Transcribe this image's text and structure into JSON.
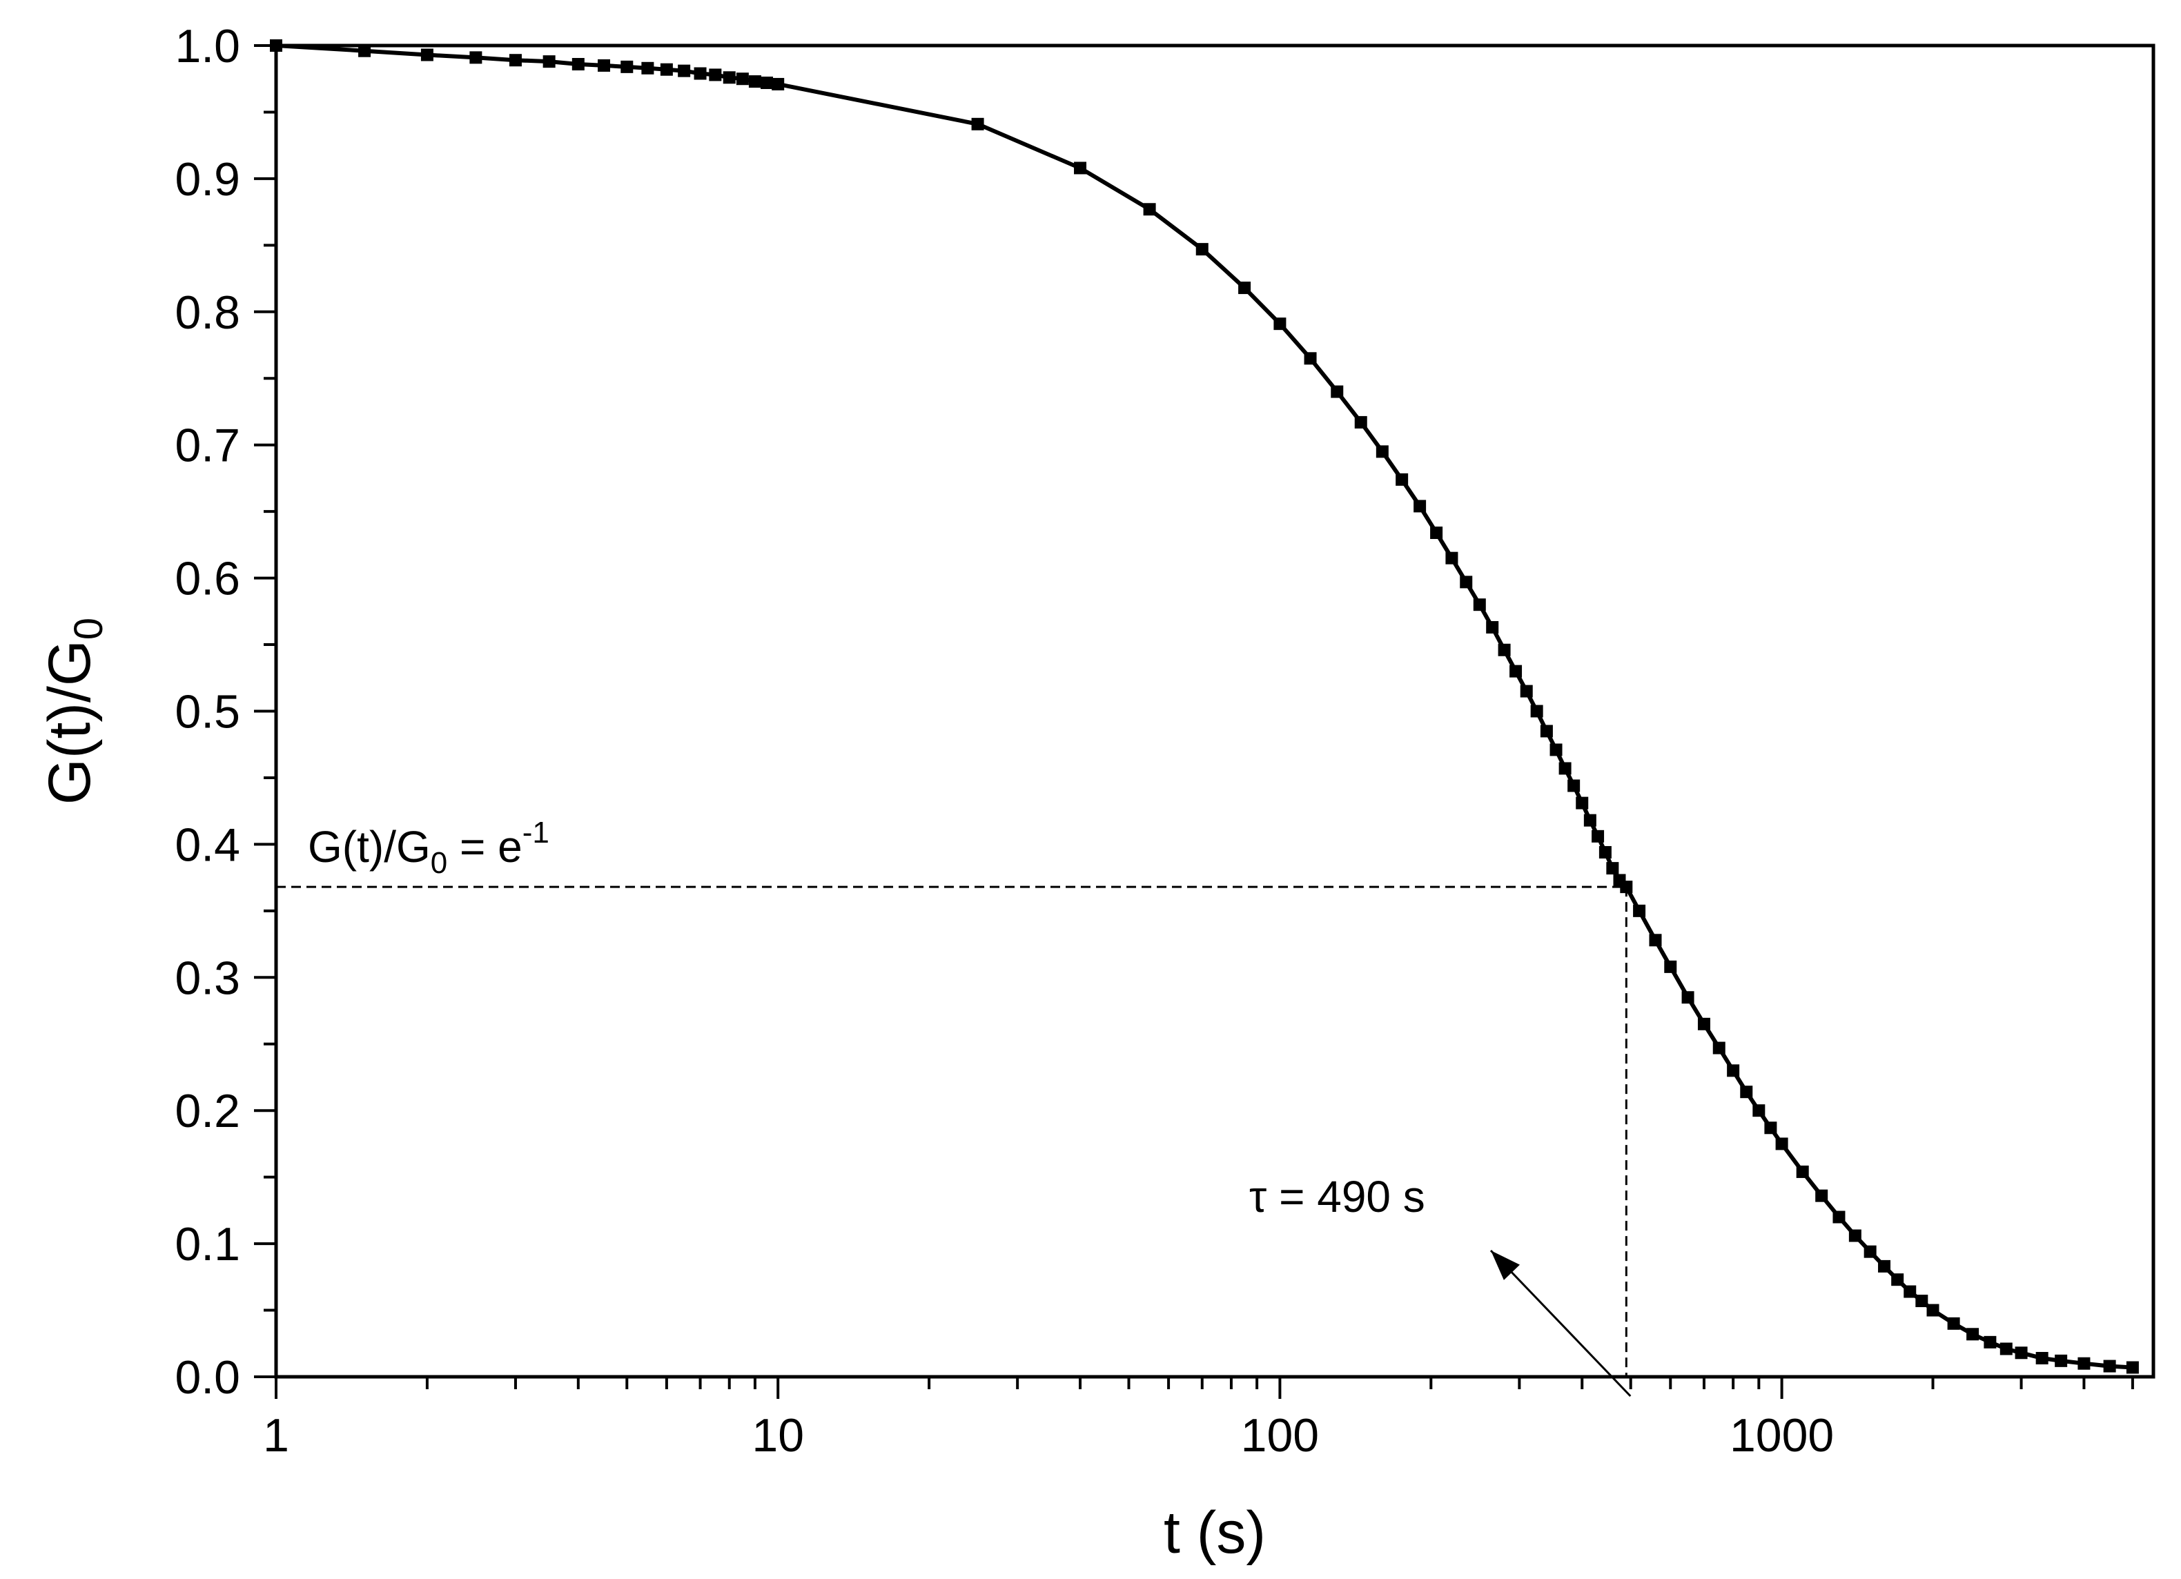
{
  "chart_data": {
    "type": "scatter",
    "title": "",
    "xlabel": "t (s)",
    "ylabel": {
      "main": "G(t)/G",
      "sub": "0"
    },
    "xscale": "log",
    "xlim": [
      1,
      5500
    ],
    "ylim": [
      0,
      1.0
    ],
    "x_ticks": [
      1,
      10,
      100,
      1000
    ],
    "x_tick_labels": [
      "1",
      "10",
      "100",
      "1000"
    ],
    "y_ticks": [
      0,
      0.1,
      0.2,
      0.3,
      0.4,
      0.5,
      0.6,
      0.7,
      0.8,
      0.9,
      1.0
    ],
    "y_tick_labels": [
      "0.0",
      "0.1",
      "0.2",
      "0.3",
      "0.4",
      "0.5",
      "0.6",
      "0.7",
      "0.8",
      "0.9",
      "1.0"
    ],
    "grid": false,
    "series": [
      {
        "marker": "square",
        "line": "solid",
        "color": "#000000",
        "x": [
          1,
          1.5,
          2,
          2.5,
          3,
          3.5,
          4,
          4.5,
          5,
          5.5,
          6,
          6.5,
          7,
          7.5,
          8,
          8.5,
          9,
          9.5,
          10,
          25,
          40,
          55,
          70,
          85,
          100,
          115,
          130,
          145,
          160,
          175,
          190,
          205,
          220,
          235,
          250,
          265,
          280,
          295,
          310,
          325,
          340,
          355,
          370,
          385,
          400,
          415,
          430,
          445,
          460,
          475,
          490,
          520,
          560,
          600,
          650,
          700,
          750,
          800,
          850,
          900,
          950,
          1000,
          1100,
          1200,
          1300,
          1400,
          1500,
          1600,
          1700,
          1800,
          1900,
          2000,
          2200,
          2400,
          2600,
          2800,
          3000,
          3300,
          3600,
          4000,
          4500,
          5000
        ],
        "y": [
          1.0,
          0.996,
          0.993,
          0.991,
          0.989,
          0.988,
          0.986,
          0.985,
          0.984,
          0.983,
          0.982,
          0.981,
          0.979,
          0.978,
          0.976,
          0.975,
          0.973,
          0.972,
          0.971,
          0.941,
          0.908,
          0.877,
          0.847,
          0.818,
          0.791,
          0.765,
          0.74,
          0.717,
          0.695,
          0.674,
          0.654,
          0.634,
          0.615,
          0.597,
          0.58,
          0.563,
          0.546,
          0.53,
          0.515,
          0.5,
          0.485,
          0.471,
          0.457,
          0.444,
          0.431,
          0.418,
          0.406,
          0.394,
          0.382,
          0.373,
          0.368,
          0.35,
          0.328,
          0.308,
          0.285,
          0.265,
          0.247,
          0.23,
          0.214,
          0.2,
          0.187,
          0.175,
          0.154,
          0.136,
          0.12,
          0.106,
          0.094,
          0.083,
          0.073,
          0.064,
          0.057,
          0.05,
          0.04,
          0.032,
          0.026,
          0.021,
          0.018,
          0.014,
          0.012,
          0.01,
          0.008,
          0.007
        ]
      }
    ],
    "reference_lines": {
      "horizontal": {
        "y": 0.368,
        "x_end": 490,
        "style": "dashed"
      },
      "vertical": {
        "x": 490,
        "y_end": 0.368,
        "style": "dashed"
      }
    },
    "annotations": {
      "threshold": {
        "main": "G(t)/G",
        "sub": "0",
        "rest": " = e",
        "sup": "-1"
      },
      "tau": {
        "text": "τ = 490 s"
      }
    }
  }
}
